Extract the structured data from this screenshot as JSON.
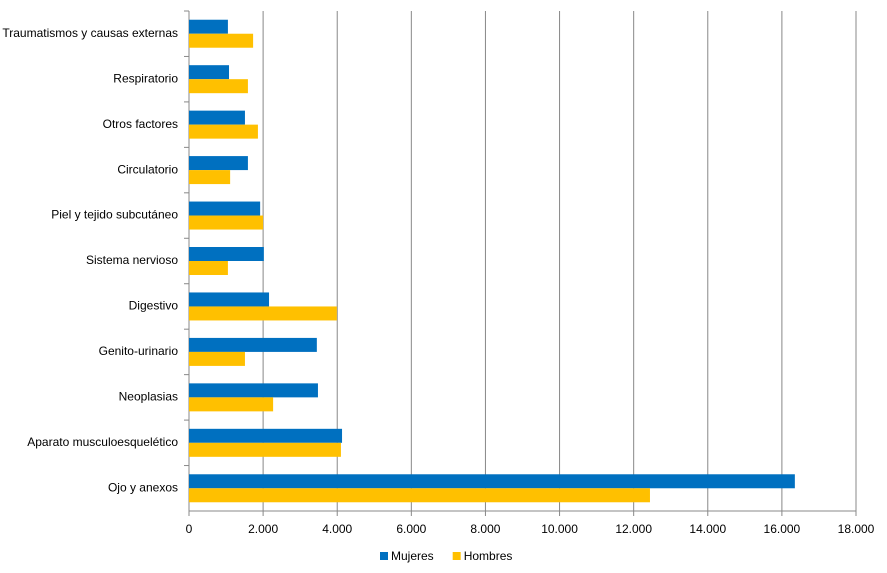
{
  "chart_data": {
    "type": "hbar",
    "categories": [
      "Traumatismos y causas externas",
      "Respiratorio",
      "Otros factores",
      "Circulatorio",
      "Piel y tejido subcutáneo",
      "Sistema nervioso",
      "Digestivo",
      "Genito-urinario",
      "Neoplasias",
      "Aparato musculoesquelético",
      "Ojo y anexos"
    ],
    "series": [
      {
        "name": "Mujeres",
        "color": "#0070c0",
        "values": [
          1050,
          1080,
          1510,
          1590,
          1920,
          2020,
          2160,
          3450,
          3480,
          4130,
          16350
        ]
      },
      {
        "name": "Hombres",
        "color": "#ffc000",
        "values": [
          1730,
          1590,
          1860,
          1110,
          2000,
          1050,
          3990,
          1510,
          2270,
          4100,
          12440
        ]
      }
    ],
    "xlim": [
      0,
      18000
    ],
    "xticks": [
      0,
      {
        "value": 2000,
        "label": "2.000"
      },
      {
        "value": 4000,
        "label": "4.000"
      },
      {
        "value": 6000,
        "label": "6.000"
      },
      {
        "value": 8000,
        "label": "8.000"
      },
      {
        "value": 10000,
        "label": "10.000"
      },
      {
        "value": 12000,
        "label": "12.000"
      },
      {
        "value": 14000,
        "label": "14.000"
      },
      {
        "value": 16000,
        "label": "16.000"
      },
      {
        "value": 18000,
        "label": "18.000"
      }
    ],
    "grid": true,
    "legend": "bottom"
  }
}
